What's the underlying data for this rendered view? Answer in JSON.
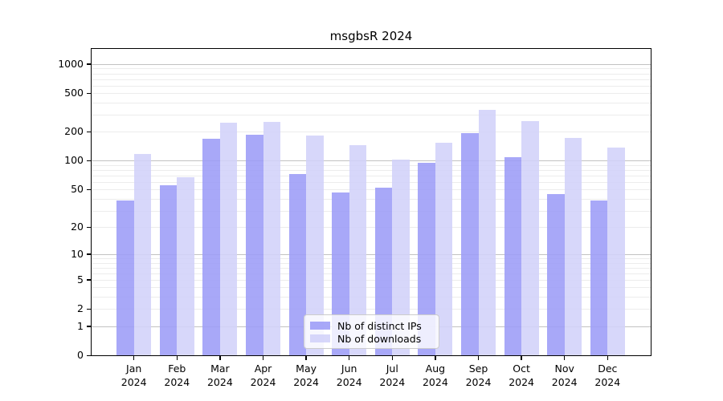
{
  "chart_data": {
    "type": "bar",
    "title": "msgbsR 2024",
    "categories": [
      "Jan",
      "Feb",
      "Mar",
      "Apr",
      "May",
      "Jun",
      "Jul",
      "Aug",
      "Sep",
      "Oct",
      "Nov",
      "Dec"
    ],
    "x_year": "2024",
    "series": [
      {
        "name": "Nb of distinct IPs",
        "color": "#9c9cf7",
        "values": [
          38,
          55,
          170,
          185,
          73,
          47,
          52,
          96,
          195,
          110,
          45,
          38
        ]
      },
      {
        "name": "Nb of downloads",
        "color": "#d1d1f9",
        "values": [
          118,
          67,
          250,
          255,
          183,
          145,
          103,
          155,
          340,
          260,
          173,
          138
        ]
      }
    ],
    "y_axis": {
      "ticks": [
        0,
        1,
        2,
        5,
        10,
        20,
        50,
        100,
        200,
        500,
        1000
      ],
      "scale": "log10(value+1)",
      "ylim": [
        0,
        1435
      ]
    },
    "grid": true,
    "legend_position": "bottom-center"
  },
  "colors": {
    "major_gridline": "#c2c2c2",
    "minor_gridline": "#ececec",
    "spine": "#000000",
    "legend_border": "#cccccc",
    "background": "#ffffff"
  }
}
